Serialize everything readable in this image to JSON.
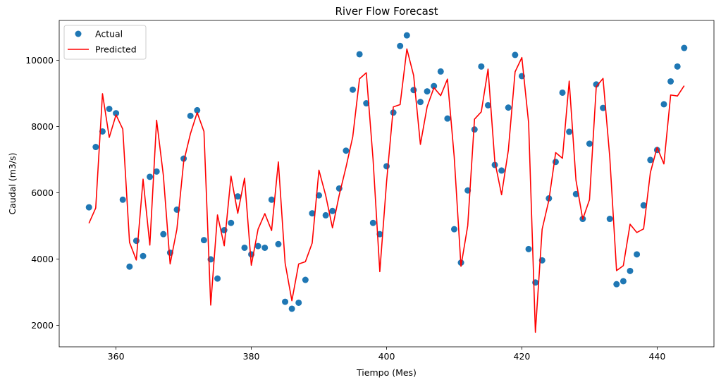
{
  "chart_data": {
    "type": "line",
    "title": "River Flow Forecast",
    "xlabel": "Tiempo (Mes)",
    "ylabel": "Caudal (m3/s)",
    "xlim": [
      351.6,
      448.4
    ],
    "ylim": [
      1350,
      11200
    ],
    "xticks": [
      360,
      380,
      400,
      420,
      440
    ],
    "yticks": [
      2000,
      4000,
      6000,
      8000,
      10000
    ],
    "grid": false,
    "legend_position": "top-left",
    "x": [
      356,
      357,
      358,
      359,
      360,
      361,
      362,
      363,
      364,
      365,
      366,
      367,
      368,
      369,
      370,
      371,
      372,
      373,
      374,
      375,
      376,
      377,
      378,
      379,
      380,
      381,
      382,
      383,
      384,
      385,
      386,
      387,
      388,
      389,
      390,
      391,
      392,
      393,
      394,
      395,
      396,
      397,
      398,
      399,
      400,
      401,
      402,
      403,
      404,
      405,
      406,
      407,
      408,
      409,
      410,
      411,
      412,
      413,
      414,
      415,
      416,
      417,
      418,
      419,
      420,
      421,
      422,
      423,
      424,
      425,
      426,
      427,
      428,
      429,
      430,
      431,
      432,
      433,
      434,
      435,
      436,
      437,
      438,
      439,
      440,
      441,
      442,
      443,
      444
    ],
    "series": [
      {
        "name": "Actual",
        "style": "markers",
        "color": "#1f77b4",
        "values": [
          5560,
          7380,
          7850,
          8530,
          8400,
          5790,
          3770,
          4550,
          4090,
          6480,
          6640,
          4750,
          4190,
          5490,
          7030,
          8320,
          8490,
          4570,
          3990,
          3410,
          4870,
          5090,
          5890,
          4340,
          4140,
          4390,
          4340,
          5790,
          4450,
          2710,
          2500,
          2680,
          3370,
          5380,
          5920,
          5320,
          5450,
          6130,
          7270,
          9110,
          10180,
          8700,
          5090,
          4750,
          6800,
          8420,
          10430,
          10750,
          9100,
          8740,
          9060,
          9220,
          9660,
          8240,
          4900,
          3890,
          6070,
          7910,
          9810,
          8640,
          6840,
          6670,
          8570,
          10160,
          9520,
          4300,
          3290,
          3960,
          5830,
          6930,
          9020,
          7840,
          5960,
          5210,
          7480,
          9270,
          8560,
          5210,
          3240,
          3330,
          3640,
          4140,
          5620,
          6990,
          7290,
          8670,
          9360,
          9810,
          10370
        ]
      },
      {
        "name": "Predicted",
        "style": "line",
        "color": "#ff0000",
        "values": [
          5080,
          5540,
          8990,
          7670,
          8350,
          7920,
          4500,
          3970,
          6410,
          4420,
          8190,
          6520,
          3850,
          4900,
          6930,
          7780,
          8420,
          7850,
          2610,
          5330,
          4400,
          6500,
          5380,
          6440,
          3810,
          4900,
          5370,
          4860,
          6930,
          3880,
          2740,
          3850,
          3920,
          4480,
          6680,
          5920,
          4940,
          5930,
          6770,
          7690,
          9440,
          9620,
          7010,
          3620,
          6330,
          8590,
          8660,
          10340,
          9540,
          7460,
          8600,
          9170,
          8930,
          9430,
          7080,
          3780,
          5010,
          8220,
          8440,
          9730,
          6950,
          5940,
          7280,
          9650,
          10080,
          8110,
          1790,
          4900,
          5780,
          7210,
          7040,
          9370,
          6380,
          5200,
          5790,
          9200,
          9450,
          7070,
          3650,
          3800,
          5050,
          4800,
          4910,
          6610,
          7370,
          6870,
          8950,
          8920,
          9230
        ]
      }
    ]
  }
}
